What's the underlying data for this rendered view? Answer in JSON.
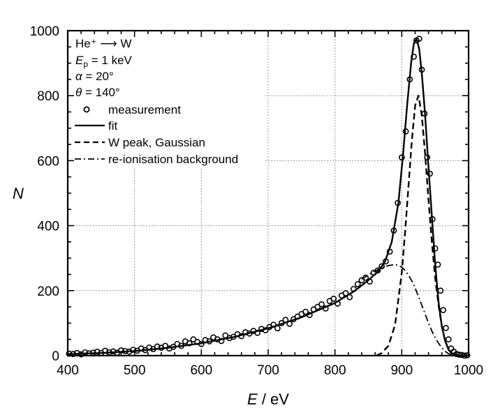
{
  "chart_data": {
    "type": "line",
    "xlabel_var": "E",
    "xlabel_unit": " / eV",
    "ylabel_var": "N",
    "xlim": [
      400,
      1000
    ],
    "ylim": [
      0,
      1000
    ],
    "x_ticks": [
      400,
      500,
      600,
      700,
      800,
      900,
      1000
    ],
    "y_ticks": [
      0,
      200,
      400,
      600,
      800,
      1000
    ],
    "grid": "dotted, partial (hidden behind legend)",
    "annotations": {
      "reaction": "He⁺ ⟶ W",
      "energy_var": "E",
      "energy_sub": "p",
      "energy_val": " = 1 keV",
      "alpha_var": "α",
      "alpha_val": " = 20°",
      "theta_var": "θ",
      "theta_val": " = 140°"
    },
    "legend": [
      {
        "label": "measurement",
        "style": "open-circle"
      },
      {
        "label": "fit",
        "style": "solid"
      },
      {
        "label": "W peak, Gaussian",
        "style": "dashed"
      },
      {
        "label": "re-ionisation background",
        "style": "dash-dot"
      }
    ],
    "series": [
      {
        "name": "fit",
        "style": "solid",
        "x": [
          400,
          450,
          500,
          550,
          600,
          650,
          700,
          750,
          800,
          830,
          850,
          865,
          875,
          885,
          895,
          902,
          908,
          914,
          918,
          922,
          926,
          930,
          935,
          940,
          945,
          950,
          955,
          960,
          965,
          970,
          975,
          980,
          990,
          1000
        ],
        "y": [
          5,
          8,
          14,
          24,
          38,
          58,
          84,
          118,
          162,
          200,
          232,
          260,
          290,
          350,
          470,
          620,
          770,
          900,
          960,
          975,
          945,
          870,
          740,
          580,
          430,
          280,
          165,
          90,
          45,
          18,
          6,
          2,
          0,
          0
        ]
      },
      {
        "name": "W peak, Gaussian",
        "style": "dashed",
        "x": [
          862,
          870,
          880,
          890,
          900,
          905,
          910,
          915,
          920,
          925,
          930,
          935,
          940,
          945,
          950,
          955,
          960,
          965,
          970,
          975,
          980,
          990
        ],
        "y": [
          0,
          8,
          30,
          95,
          255,
          380,
          520,
          660,
          770,
          800,
          740,
          620,
          480,
          350,
          240,
          155,
          90,
          45,
          20,
          8,
          2,
          0
        ]
      },
      {
        "name": "re-ionisation background",
        "style": "dash-dot",
        "x": [
          840,
          850,
          860,
          870,
          880,
          890,
          895,
          900,
          905,
          910,
          915,
          920,
          925,
          930,
          935,
          940,
          945,
          950,
          955,
          960,
          965,
          970,
          980
        ],
        "y": [
          235,
          248,
          260,
          270,
          277,
          280,
          278,
          272,
          262,
          248,
          230,
          208,
          182,
          155,
          128,
          100,
          76,
          55,
          38,
          24,
          13,
          6,
          0
        ]
      },
      {
        "name": "measurement",
        "style": "open-circle",
        "x": [
          402,
          408,
          414,
          420,
          426,
          432,
          438,
          444,
          450,
          456,
          462,
          468,
          474,
          480,
          486,
          492,
          498,
          504,
          510,
          516,
          522,
          528,
          534,
          540,
          546,
          552,
          558,
          564,
          570,
          576,
          582,
          588,
          594,
          600,
          606,
          612,
          618,
          624,
          630,
          636,
          642,
          648,
          654,
          660,
          666,
          672,
          678,
          684,
          690,
          696,
          702,
          708,
          714,
          720,
          726,
          732,
          738,
          744,
          750,
          756,
          762,
          768,
          774,
          780,
          786,
          792,
          798,
          804,
          810,
          816,
          822,
          828,
          834,
          840,
          846,
          852,
          858,
          864,
          870,
          876,
          882,
          888,
          894,
          900,
          906,
          912,
          918,
          922,
          926,
          930,
          934,
          938,
          942,
          946,
          950,
          954,
          958,
          962,
          966,
          970,
          974,
          978,
          982,
          986,
          990,
          994,
          998
        ],
        "y": [
          6,
          5,
          8,
          4,
          10,
          7,
          9,
          12,
          8,
          15,
          10,
          13,
          9,
          16,
          14,
          12,
          18,
          15,
          22,
          17,
          25,
          20,
          28,
          24,
          30,
          22,
          27,
          36,
          30,
          44,
          38,
          50,
          42,
          36,
          48,
          44,
          56,
          50,
          45,
          62,
          54,
          58,
          66,
          60,
          72,
          68,
          76,
          70,
          82,
          78,
          88,
          95,
          84,
          100,
          110,
          98,
          112,
          120,
          128,
          135,
          125,
          142,
          150,
          158,
          145,
          168,
          175,
          160,
          185,
          192,
          180,
          205,
          220,
          232,
          240,
          228,
          255,
          262,
          275,
          290,
          320,
          385,
          470,
          610,
          690,
          850,
          920,
          970,
          975,
          880,
          745,
          610,
          560,
          420,
          330,
          280,
          200,
          140,
          85,
          50,
          22,
          12,
          5,
          3,
          2,
          0,
          1
        ]
      }
    ]
  }
}
